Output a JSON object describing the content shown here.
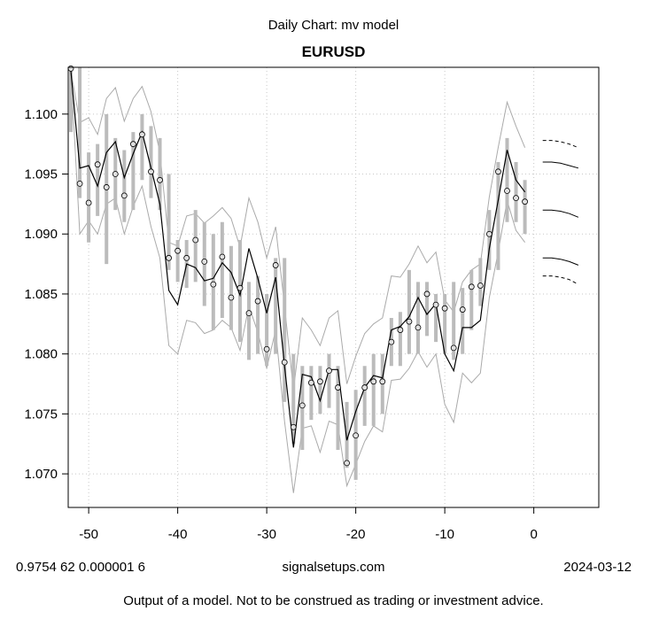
{
  "header": {
    "subtitle": "Daily Chart: mv model",
    "title": "EURUSD"
  },
  "footer": {
    "left": "0.9754 62 0.000001 6",
    "center": "signalsetups.com",
    "right": "2024-03-12",
    "disclaimer": "Output of a model.  Not to be construed as trading or investment advice."
  },
  "chart_data": {
    "type": "line",
    "title": "EURUSD",
    "subtitle": "Daily Chart: mv model",
    "xlabel": "",
    "ylabel": "",
    "xlim": [
      -52.3,
      7.3
    ],
    "ylim": [
      1.0672,
      1.1039
    ],
    "grid": true,
    "x_ticks": [
      -50,
      -40,
      -30,
      -20,
      -10,
      0
    ],
    "x_tick_labels": [
      "-50",
      "-40",
      "-30",
      "-20",
      "-10",
      "0"
    ],
    "y_ticks": [
      1.07,
      1.075,
      1.08,
      1.085,
      1.09,
      1.095,
      1.1
    ],
    "y_tick_labels": [
      "1.070",
      "1.075",
      "1.080",
      "1.085",
      "1.090",
      "1.095",
      "1.100"
    ],
    "colors": {
      "model": "#000000",
      "bands": "#aaaaaa",
      "ranges": "#bbbbbb",
      "grid": "#c8c8c8"
    },
    "x": [
      -52,
      -51,
      -50,
      -49,
      -48,
      -47,
      -46,
      -45,
      -44,
      -43,
      -42,
      -41,
      -40,
      -39,
      -38,
      -37,
      -36,
      -35,
      -34,
      -33,
      -32,
      -31,
      -30,
      -29,
      -28,
      -27,
      -26,
      -25,
      -24,
      -23,
      -22,
      -21,
      -20,
      -19,
      -18,
      -17,
      -16,
      -15,
      -14,
      -13,
      -12,
      -11,
      -10,
      -9,
      -8,
      -7,
      -6,
      -5,
      -4,
      -3,
      -2,
      -1
    ],
    "close": [
      1.1038,
      1.0942,
      1.0926,
      1.0958,
      1.0939,
      1.095,
      1.0932,
      1.0975,
      1.0983,
      1.0952,
      1.0945,
      1.088,
      1.0886,
      1.088,
      1.0895,
      1.0877,
      1.0858,
      1.0881,
      1.0847,
      1.0855,
      1.0834,
      1.0844,
      1.0804,
      1.0874,
      1.0793,
      1.0739,
      1.0757,
      1.0776,
      1.0777,
      1.0786,
      1.0772,
      1.0709,
      1.0732,
      1.0772,
      1.0777,
      1.0777,
      1.081,
      1.082,
      1.0827,
      1.0822,
      1.085,
      1.0841,
      1.0838,
      1.0805,
      1.0837,
      1.0856,
      1.0857,
      1.09,
      1.0952,
      1.0936,
      1.093,
      1.0927
    ],
    "high": [
      1.1039,
      1.1039,
      1.0968,
      1.0975,
      1.1,
      1.098,
      1.097,
      1.0985,
      1.1,
      1.099,
      1.098,
      1.095,
      1.0895,
      1.0895,
      1.092,
      1.091,
      1.09,
      1.091,
      1.089,
      1.0895,
      1.086,
      1.0865,
      1.085,
      1.088,
      1.088,
      1.08,
      1.079,
      1.079,
      1.079,
      1.08,
      1.079,
      1.076,
      1.077,
      1.079,
      1.08,
      1.08,
      1.083,
      1.0835,
      1.087,
      1.086,
      1.086,
      1.085,
      1.085,
      1.086,
      1.0855,
      1.087,
      1.088,
      1.092,
      1.096,
      1.098,
      1.096,
      1.0945
    ],
    "low": [
      1.0985,
      1.093,
      1.0893,
      1.0915,
      1.0875,
      1.092,
      1.091,
      1.092,
      1.0945,
      1.093,
      1.092,
      1.087,
      1.086,
      1.0855,
      1.086,
      1.084,
      1.082,
      1.083,
      1.082,
      1.081,
      1.0795,
      1.08,
      1.079,
      1.08,
      1.076,
      1.0725,
      1.072,
      1.0745,
      1.075,
      1.0755,
      1.072,
      1.0705,
      1.0695,
      1.074,
      1.074,
      1.075,
      1.079,
      1.079,
      1.08,
      1.08,
      1.0815,
      1.081,
      1.08,
      1.0795,
      1.08,
      1.082,
      1.084,
      1.087,
      1.087,
      1.091,
      1.091,
      1.09
    ],
    "model": [
      1.1036,
      1.0955,
      1.0957,
      1.094,
      1.0968,
      1.0977,
      1.0947,
      1.0967,
      1.0985,
      1.0955,
      1.0925,
      1.0853,
      1.0841,
      1.0875,
      1.0872,
      1.0861,
      1.0863,
      1.0876,
      1.0868,
      1.0849,
      1.0888,
      1.0863,
      1.0834,
      1.0864,
      1.079,
      1.0722,
      1.0783,
      1.0781,
      1.0761,
      1.0787,
      1.0787,
      1.0728,
      1.0752,
      1.0772,
      1.0782,
      1.078,
      1.082,
      1.0823,
      1.0831,
      1.0847,
      1.0833,
      1.0842,
      1.08,
      1.0786,
      1.0822,
      1.0822,
      1.0828,
      1.0888,
      1.0928,
      1.097,
      1.0945,
      1.0935
    ],
    "upper_band": [
      1.1036,
      1.0993,
      1.0997,
      1.0983,
      1.1013,
      1.1022,
      1.0994,
      1.1013,
      1.1023,
      1.1002,
      1.0968,
      1.0893,
      1.089,
      1.0915,
      1.0917,
      1.0909,
      1.0915,
      1.0922,
      1.0913,
      1.0889,
      1.093,
      1.091,
      1.088,
      1.0906,
      1.084,
      1.077,
      1.083,
      1.082,
      1.0807,
      1.083,
      1.0836,
      1.0775,
      1.0798,
      1.0817,
      1.0825,
      1.083,
      1.0865,
      1.0864,
      1.0875,
      1.089,
      1.0876,
      1.0885,
      1.0845,
      1.0835,
      1.086,
      1.087,
      1.0875,
      1.0931,
      1.0972,
      1.101,
      1.099,
      1.0972
    ],
    "lower_band": [
      1.1036,
      1.09,
      1.0911,
      1.09,
      1.0925,
      1.093,
      1.09,
      1.0923,
      1.094,
      1.0906,
      1.088,
      1.0807,
      1.08,
      1.0828,
      1.0826,
      1.0817,
      1.082,
      1.0828,
      1.0822,
      1.0803,
      1.084,
      1.0818,
      1.0788,
      1.082,
      1.0744,
      1.0684,
      1.0738,
      1.074,
      1.0718,
      1.0744,
      1.0741,
      1.069,
      1.0708,
      1.0727,
      1.074,
      1.0735,
      1.0778,
      1.0779,
      1.0788,
      1.0802,
      1.0789,
      1.08,
      1.0758,
      1.0743,
      1.0784,
      1.0776,
      1.0784,
      1.0847,
      1.0885,
      1.0928,
      1.0903,
      1.0893
    ],
    "forecast_x": [
      1,
      2,
      3,
      4,
      5
    ],
    "forecast": [
      {
        "style": "dashed",
        "values": [
          1.0978,
          1.0978,
          1.0977,
          1.0975,
          1.0972
        ]
      },
      {
        "style": "solid",
        "values": [
          1.096,
          1.096,
          1.0959,
          1.0957,
          1.0955
        ]
      },
      {
        "style": "solid",
        "values": [
          1.092,
          1.092,
          1.0919,
          1.0917,
          1.0914
        ]
      },
      {
        "style": "solid",
        "values": [
          1.088,
          1.088,
          1.0879,
          1.0877,
          1.0874
        ]
      },
      {
        "style": "dashed",
        "values": [
          1.0865,
          1.0865,
          1.0864,
          1.0862,
          1.0858
        ]
      }
    ]
  }
}
